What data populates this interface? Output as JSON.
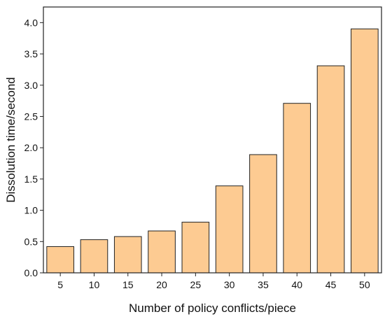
{
  "chart_data": {
    "type": "bar",
    "categories": [
      "5",
      "10",
      "15",
      "20",
      "25",
      "30",
      "35",
      "40",
      "45",
      "50"
    ],
    "values": [
      0.42,
      0.53,
      0.58,
      0.67,
      0.81,
      1.39,
      1.89,
      2.71,
      3.31,
      3.9
    ],
    "xlabel": "Number of policy conflicts/piece",
    "ylabel": "Dissolution time/second",
    "ylim": [
      0,
      4.25
    ],
    "yticks": [
      "0.0",
      "0.5",
      "1.0",
      "1.5",
      "2.0",
      "2.5",
      "3.0",
      "3.5",
      "4.0"
    ],
    "grid": false,
    "bar_color": "#fdcb92",
    "bar_edge_color": "#222222"
  }
}
